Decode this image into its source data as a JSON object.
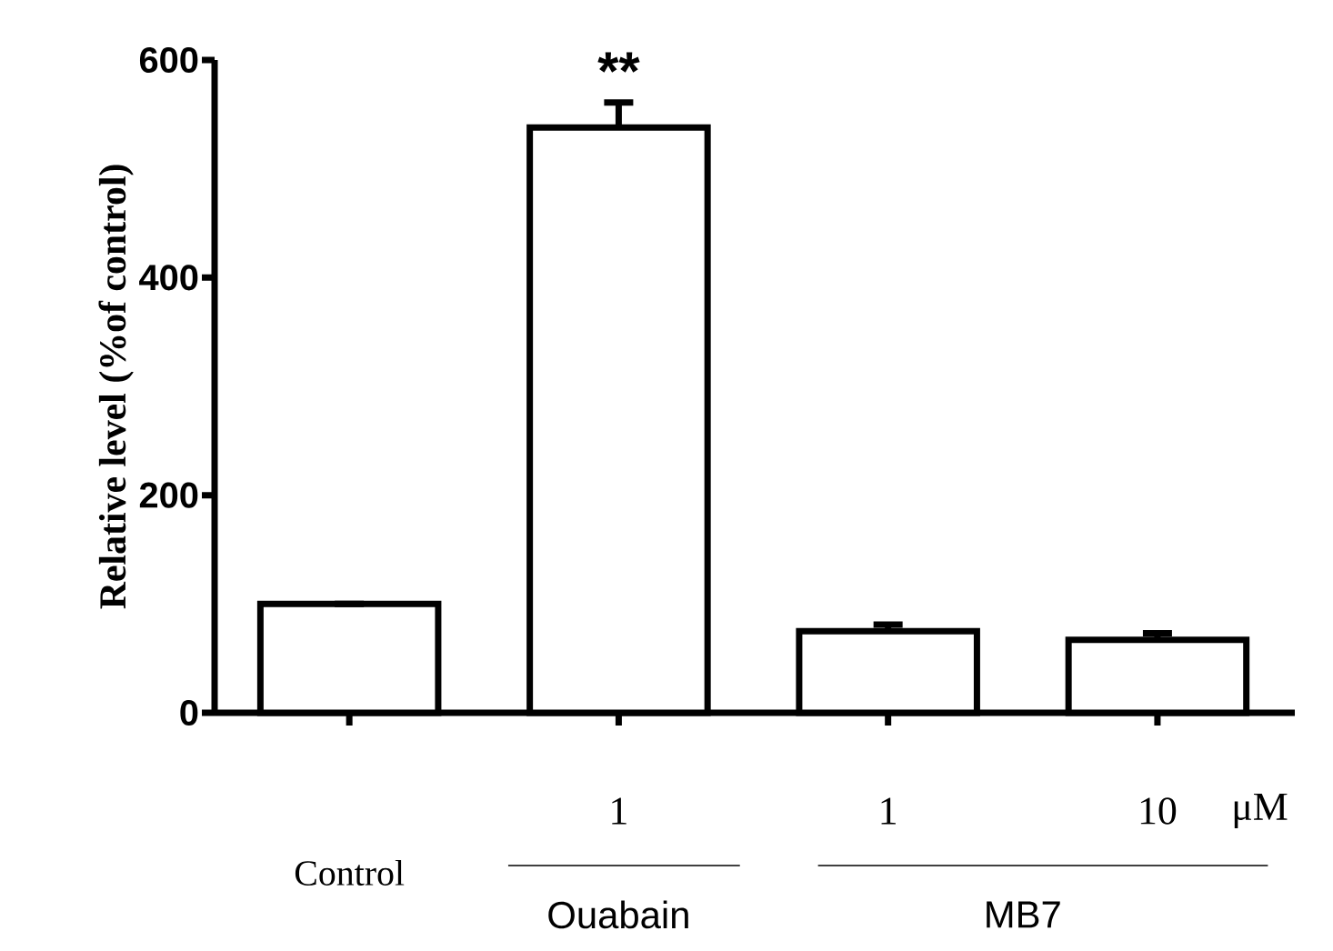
{
  "chart_data": {
    "type": "bar",
    "ylabel": "Relative level (%of control)",
    "categories": [
      null,
      "1",
      "1",
      "10"
    ],
    "values": [
      100,
      538,
      75,
      67
    ],
    "errors": [
      null,
      23,
      6,
      6
    ],
    "color": "#ffffff",
    "ylim": [
      0,
      600
    ],
    "yticks": [
      0,
      200,
      400,
      600
    ],
    "grid": false,
    "annotations": [
      "**",
      "Ouabain",
      "MB7",
      "μM",
      "Control"
    ]
  }
}
